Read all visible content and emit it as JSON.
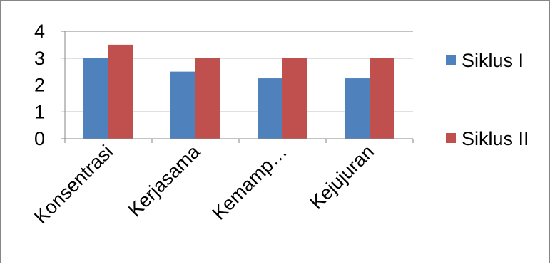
{
  "chart_data": {
    "type": "bar",
    "categories": [
      "Konsentrasi",
      "Kerjasama",
      "Kemamp…",
      "Kejujuran"
    ],
    "series": [
      {
        "name": "Siklus I",
        "values": [
          3,
          2.5,
          2.25,
          2.25
        ],
        "color": "#4F81BD"
      },
      {
        "name": "Siklus II",
        "values": [
          3.5,
          3,
          3,
          3
        ],
        "color": "#C0504D"
      }
    ],
    "title": "",
    "xlabel": "",
    "ylabel": "",
    "ylim": [
      0,
      4
    ],
    "yticks": [
      "0",
      "1",
      "2",
      "3",
      "4"
    ],
    "grid": true,
    "legend_position": "right"
  }
}
